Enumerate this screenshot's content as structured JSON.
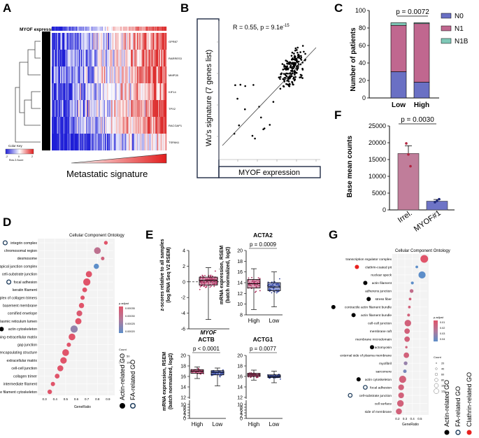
{
  "panels": {
    "A": {
      "letter": "A",
      "title": "MYOF expression",
      "genes": [
        "GPR87",
        "RARRES3",
        "MMP28",
        "KIF14",
        "TPX2",
        "RACGAP1",
        "TSPAN1"
      ],
      "color_key_title": "Color Key",
      "color_key_label": "Row Z-Score",
      "color_key_ticks": [
        "-2",
        "0",
        "2"
      ],
      "signature_label": "Metastatic signature"
    },
    "B": {
      "letter": "B",
      "stats": "R = 0.55, p = 9.1e",
      "stats_exp": "-15",
      "ylabel": "Wu's signature (7 genes list)",
      "xlabel": "MYOF expression"
    },
    "C": {
      "letter": "C",
      "pval": "p = 0.0072",
      "ylabel": "Number of patients",
      "yticks": [
        "0",
        "20",
        "40",
        "60",
        "80",
        "100"
      ],
      "legend": [
        {
          "label": "N0",
          "color": "#6a70c4"
        },
        {
          "label": "N1",
          "color": "#c0678f"
        },
        {
          "label": "N1B",
          "color": "#7fc8b7"
        }
      ]
    },
    "F": {
      "letter": "F",
      "pval": "p = 0.0030",
      "ylabel": "Base mean counts",
      "yticks": [
        "0",
        "5000",
        "10000",
        "15000",
        "20000",
        "25000"
      ]
    },
    "D": {
      "letter": "D",
      "title": "Cellular Component Ontology",
      "xlabel": "GeneRatio",
      "xticks": [
        "0.3",
        "0.4",
        "0.5",
        "0.6",
        "0.7",
        "0.8",
        "0.9"
      ],
      "padj_title": "p.adjust",
      "padj_ticks": [
        "0.00035",
        "0.00030",
        "0.00025",
        "0.00020"
      ],
      "count_title": "Count",
      "count_ticks": [
        "50",
        "100"
      ],
      "legend_actin": "Actin-related GO",
      "legend_fa": "FA-related GO"
    },
    "E": {
      "letter": "E",
      "myof_ylabel1": "z-scores relative to all samples",
      "myof_ylabel2": "(log RNA Seq V2 RSEM)",
      "myof_xlabel": "MYOF",
      "myof_yticks": [
        "4",
        "2",
        "0",
        "-2",
        "-4",
        "-6"
      ],
      "acta2_title": "ACTA2",
      "acta2_pval": "p = 0.0009",
      "acta2_yticks": [
        "20",
        "18",
        "16",
        "14",
        "12",
        "10",
        "8"
      ],
      "actb_title": "ACTB",
      "actb_pval": "p < 0.0001",
      "actb_yticks": [
        "20",
        "18",
        "16",
        "14",
        "12",
        "10",
        "8",
        "6",
        "4",
        "2",
        "0"
      ],
      "actg1_title": "ACTG1",
      "actg1_pval": "p = 0.0077",
      "actg1_yticks": [
        "20",
        "18",
        "16",
        "14",
        "12",
        "10",
        "8",
        "6",
        "4",
        "2",
        "0"
      ],
      "rsem_label1": "mRNA expression, RSEM",
      "rsem_label2": "(batch normalized, log2)",
      "group_high": "High",
      "group_low": "Low"
    },
    "G": {
      "letter": "G",
      "title": "Cellular Component Ontology",
      "xlabel": "GeneRatio",
      "xticks": [
        "0.2",
        "0.3",
        "0.4",
        "0.5"
      ],
      "padj_title": "p.adjust",
      "padj_ticks": [
        "0.01",
        "0.02",
        "0.03",
        "0.04"
      ],
      "count_title": "Count",
      "count_ticks": [
        "20",
        "40",
        "60",
        "80",
        "100",
        "120"
      ],
      "legend_actin": "Actin-related GO",
      "legend_fa": "FA-related GO",
      "legend_clathrin": "Clathrin-related GO"
    }
  },
  "chart_data": [
    {
      "id": "C",
      "type": "bar",
      "stacked": true,
      "categories": [
        "Low",
        "High"
      ],
      "series": [
        {
          "name": "N0",
          "values": [
            30,
            18
          ]
        },
        {
          "name": "N1",
          "values": [
            53,
            67
          ]
        },
        {
          "name": "N1B",
          "values": [
            3,
            1
          ]
        }
      ],
      "ylabel": "Number of patients",
      "ylim": [
        0,
        100
      ]
    },
    {
      "id": "F",
      "type": "bar",
      "categories": [
        "Irrel.",
        "MYOF#1"
      ],
      "values": [
        16800,
        2600
      ],
      "errors": [
        2300,
        500
      ],
      "points": [
        [
          19800,
          16500,
          13000
        ],
        [
          2300,
          2700,
          3200
        ]
      ],
      "ylabel": "Base mean counts",
      "ylim": [
        0,
        25000
      ]
    },
    {
      "id": "B",
      "type": "scatter",
      "title": "R = 0.55, p = 9.1e-15",
      "xlabel": "MYOF expression",
      "ylabel": "Wu's signature (7 genes list)",
      "n_points": 200
    },
    {
      "id": "D",
      "type": "scatter",
      "title": "Cellular Component Ontology",
      "xlabel": "GeneRatio",
      "xlim": [
        0.25,
        0.95
      ],
      "terms": [
        {
          "name": "integrin complex",
          "x": 0.88,
          "count": 40,
          "padj": 0.00036,
          "tag": "fa"
        },
        {
          "name": "chromosomal region",
          "x": 0.8,
          "count": 100,
          "padj": 0.0003,
          "tag": ""
        },
        {
          "name": "desmosome",
          "x": 0.85,
          "count": 35,
          "padj": 0.00033,
          "tag": ""
        },
        {
          "name": "apical junction complex",
          "x": 0.79,
          "count": 70,
          "padj": 0.0002,
          "tag": ""
        },
        {
          "name": "cell-substrate junction",
          "x": 0.72,
          "count": 90,
          "padj": 0.00036,
          "tag": "fa"
        },
        {
          "name": "focal adhesion",
          "x": 0.7,
          "count": 110,
          "padj": 0.00036,
          "tag": "fa"
        },
        {
          "name": "keratin filament",
          "x": 0.68,
          "count": 60,
          "padj": 0.00036,
          "tag": ""
        },
        {
          "name": "complex of collagen trimers",
          "x": 0.66,
          "count": 50,
          "padj": 0.00036,
          "tag": ""
        },
        {
          "name": "basement membrane",
          "x": 0.65,
          "count": 70,
          "padj": 0.00036,
          "tag": ""
        },
        {
          "name": "cornified envelope",
          "x": 0.63,
          "count": 80,
          "padj": 0.00035,
          "tag": ""
        },
        {
          "name": "endoplasmic reticulum lumen",
          "x": 0.62,
          "count": 90,
          "padj": 0.00036,
          "tag": ""
        },
        {
          "name": "actin cytoskeleton",
          "x": 0.58,
          "count": 110,
          "padj": 0.00025,
          "tag": "actin"
        },
        {
          "name": "collagen-containing extracellular matrix",
          "x": 0.56,
          "count": 100,
          "padj": 0.00036,
          "tag": ""
        },
        {
          "name": "gap junction",
          "x": 0.53,
          "count": 50,
          "padj": 0.00036,
          "tag": ""
        },
        {
          "name": "external encapsulating structure",
          "x": 0.5,
          "count": 100,
          "padj": 0.00036,
          "tag": ""
        },
        {
          "name": "extracellular matrix",
          "x": 0.48,
          "count": 95,
          "padj": 0.00036,
          "tag": ""
        },
        {
          "name": "cell-cell junction",
          "x": 0.45,
          "count": 85,
          "padj": 0.00036,
          "tag": ""
        },
        {
          "name": "collagen trimer",
          "x": 0.42,
          "count": 60,
          "padj": 0.00036,
          "tag": ""
        },
        {
          "name": "intermediate filament",
          "x": 0.38,
          "count": 50,
          "padj": 0.00036,
          "tag": ""
        },
        {
          "name": "intermediate filament cytoskeleton",
          "x": 0.35,
          "count": 55,
          "padj": 0.00036,
          "tag": ""
        }
      ]
    },
    {
      "id": "G",
      "type": "scatter",
      "title": "Cellular Component Ontology",
      "xlabel": "GeneRatio",
      "xlim": [
        0.15,
        0.6
      ],
      "terms": [
        {
          "name": "transcription regulator complex",
          "x": 0.56,
          "count": 120,
          "padj": 0.01,
          "tag": ""
        },
        {
          "name": "clathrin-coated pit",
          "x": 0.46,
          "count": 30,
          "padj": 0.04,
          "tag": "clathrin"
        },
        {
          "name": "nuclear speck",
          "x": 0.53,
          "count": 110,
          "padj": 0.04,
          "tag": ""
        },
        {
          "name": "actin filament",
          "x": 0.4,
          "count": 35,
          "padj": 0.04,
          "tag": "actin"
        },
        {
          "name": "adherens junction",
          "x": 0.39,
          "count": 50,
          "padj": 0.02,
          "tag": ""
        },
        {
          "name": "stress fiber",
          "x": 0.37,
          "count": 30,
          "padj": 0.015,
          "tag": "actin"
        },
        {
          "name": "contractile actin filament bundle",
          "x": 0.36,
          "count": 30,
          "padj": 0.015,
          "tag": "actin"
        },
        {
          "name": "actin filament bundle",
          "x": 0.35,
          "count": 35,
          "padj": 0.015,
          "tag": "actin"
        },
        {
          "name": "cell-cell junction",
          "x": 0.34,
          "count": 100,
          "padj": 0.015,
          "tag": ""
        },
        {
          "name": "membrane raft",
          "x": 0.33,
          "count": 80,
          "padj": 0.015,
          "tag": ""
        },
        {
          "name": "membrane microdomain",
          "x": 0.33,
          "count": 80,
          "padj": 0.015,
          "tag": ""
        },
        {
          "name": "actomyosin",
          "x": 0.32,
          "count": 25,
          "padj": 0.015,
          "tag": "actin"
        },
        {
          "name": "external side of plasma membrane",
          "x": 0.32,
          "count": 80,
          "padj": 0.015,
          "tag": ""
        },
        {
          "name": "myofibril",
          "x": 0.31,
          "count": 50,
          "padj": 0.03,
          "tag": ""
        },
        {
          "name": "sarcomere",
          "x": 0.3,
          "count": 45,
          "padj": 0.035,
          "tag": ""
        },
        {
          "name": "actin cytoskeleton",
          "x": 0.27,
          "count": 110,
          "padj": 0.015,
          "tag": "actin"
        },
        {
          "name": "focal adhesion",
          "x": 0.25,
          "count": 85,
          "padj": 0.015,
          "tag": "fa"
        },
        {
          "name": "cell-substrate junction",
          "x": 0.25,
          "count": 85,
          "padj": 0.015,
          "tag": "fa"
        },
        {
          "name": "cell surface",
          "x": 0.24,
          "count": 100,
          "padj": 0.015,
          "tag": ""
        },
        {
          "name": "side of membrane",
          "x": 0.22,
          "count": 90,
          "padj": 0.015,
          "tag": ""
        }
      ]
    },
    {
      "id": "E-MYOF",
      "type": "box",
      "ylabel": "z-scores relative to all samples (log RNA Seq V2 RSEM)",
      "xlabel": "MYOF",
      "ylim": [
        -6,
        4
      ],
      "box": {
        "min": -4.8,
        "q1": -0.4,
        "median": 0.2,
        "q3": 0.6,
        "max": 1.8
      }
    },
    {
      "id": "E-ACTA2",
      "type": "box",
      "title": "ACTA2",
      "categories": [
        "High",
        "Low"
      ],
      "ylim": [
        8,
        20
      ],
      "boxes": [
        {
          "min": 9.0,
          "q1": 13.0,
          "median": 13.8,
          "q3": 14.6,
          "max": 16.6
        },
        {
          "min": 9.5,
          "q1": 12.5,
          "median": 13.2,
          "q3": 14.0,
          "max": 16.0
        }
      ]
    },
    {
      "id": "E-ACTB",
      "type": "box",
      "title": "ACTB",
      "categories": [
        "High",
        "Low"
      ],
      "ylim": [
        0,
        20
      ],
      "boxes": [
        {
          "min": 15.6,
          "q1": 16.6,
          "median": 17.0,
          "q3": 17.3,
          "max": 17.8
        },
        {
          "min": 14.2,
          "q1": 16.3,
          "median": 16.8,
          "q3": 17.1,
          "max": 17.6
        }
      ]
    },
    {
      "id": "E-ACTG1",
      "type": "box",
      "title": "ACTG1",
      "categories": [
        "High",
        "Low"
      ],
      "ylim": [
        0,
        20
      ],
      "boxes": [
        {
          "min": 15.3,
          "q1": 16.0,
          "median": 16.3,
          "q3": 16.6,
          "max": 17.2
        },
        {
          "min": 14.8,
          "q1": 15.8,
          "median": 16.0,
          "q3": 16.3,
          "max": 17.0
        }
      ]
    }
  ]
}
